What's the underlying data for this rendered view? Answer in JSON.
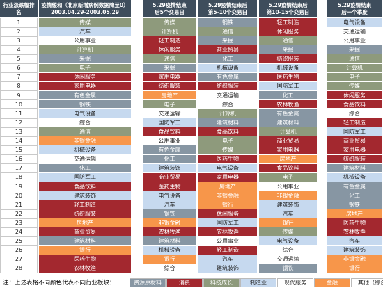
{
  "table": {
    "rank_header": "行业涨跌幅排名",
    "ranks": [
      "1",
      "2",
      "3",
      "4",
      "5",
      "6",
      "7",
      "8",
      "9",
      "10",
      "11",
      "12",
      "13",
      "14",
      "15",
      "16",
      "17",
      "18",
      "19",
      "20",
      "21",
      "22",
      "23",
      "24",
      "25",
      "26",
      "27",
      "28"
    ],
    "columns": [
      {
        "header": [
          "疫情缓和（北京新增病例数据降至0）",
          "2003.04.29-2003.05.29"
        ],
        "cells": [
          "传媒",
          "汽车",
          "公用事业",
          "计算机",
          "采掘",
          "电子",
          "休闲服务",
          "家用电器",
          "有色金属",
          "钢铁",
          "电气设备",
          "综合",
          "通信",
          "非银金融",
          "机械设备",
          "交通运输",
          "化工",
          "国防军工",
          "食品饮料",
          "建筑装饰",
          "轻工制造",
          "纺织服装",
          "房地产",
          "商业贸易",
          "建筑材料",
          "银行",
          "医药生物",
          "农林牧渔"
        ]
      },
      {
        "header": [
          "5.29疫情结束",
          "后5个交易日"
        ],
        "cells": [
          "传媒",
          "计算机",
          "轻工制造",
          "休闲服务",
          "通信",
          "采掘",
          "家用电器",
          "纺织服装",
          "房地产",
          "电子",
          "交通运输",
          "国防军工",
          "食品饮料",
          "公用事业",
          "有色金属",
          "化工",
          "建筑装饰",
          "商业贸易",
          "医药生物",
          "电气设备",
          "汽车",
          "钢铁",
          "非银金融",
          "农林牧渔",
          "建筑材料",
          "机械设备",
          "银行",
          "综合"
        ]
      },
      {
        "header": [
          "5.29疫情结束后",
          "第5-10个交易日"
        ],
        "cells": [
          "钢铁",
          "通信",
          "采掘",
          "商业贸易",
          "化工",
          "机械设备",
          "有色金属",
          "纺织服装",
          "交通运输",
          "综合",
          "计算机",
          "建筑材料",
          "食品饮料",
          "电子",
          "传媒",
          "医药生物",
          "电气设备",
          "家用电器",
          "房地产",
          "非银金融",
          "银行",
          "休闲服务",
          "国防军工",
          "农林牧渔",
          "公用事业",
          "轻工制造",
          "汽车",
          "建筑装饰"
        ]
      },
      {
        "header": [
          "5.29疫情结束后",
          "第10-15个交易日"
        ],
        "cells": [
          "轻工制造",
          "休闲服务",
          "通信",
          "采掘",
          "纺织服装",
          "机械设备",
          "医药生物",
          "国防军工",
          "化工",
          "农林牧渔",
          "有色金属",
          "建筑材料",
          "计算机",
          "商业贸易",
          "家用电器",
          "房地产",
          "食品饮料",
          "电子",
          "公用事业",
          "非银金融",
          "建筑装饰",
          "汽车",
          "银行",
          "传媒",
          "电气设备",
          "综合",
          "交通运输",
          "钢铁"
        ]
      },
      {
        "header": [
          "5.29疫情结束",
          "后一个季度"
        ],
        "cells": [
          "电气设备",
          "交通运输",
          "公用事业",
          "采掘",
          "通信",
          "计算机",
          "电子",
          "传媒",
          "休闲服务",
          "食品饮料",
          "综合",
          "轻工制造",
          "国防军工",
          "商业贸易",
          "家用电器",
          "纺织服装",
          "建筑材料",
          "机械设备",
          "有色金属",
          "化工",
          "钢铁",
          "房地产",
          "医药生物",
          "农林牧渔",
          "汽车",
          "建筑装饰",
          "非银金融",
          "银行"
        ]
      }
    ],
    "note": "注：上述表格不同颜色代表不同行业板块：",
    "legend": [
      {
        "label": "资源原材料",
        "color": "#8796a3",
        "text_color": "#ffffff",
        "members": [
          "采掘",
          "有色金属",
          "钢铁",
          "化工",
          "建筑材料"
        ]
      },
      {
        "label": "消费",
        "color": "#a3282f",
        "text_color": "#ffffff",
        "members": [
          "休闲服务",
          "家用电器",
          "食品饮料",
          "轻工制造",
          "纺织服装",
          "商业贸易",
          "医药生物",
          "农林牧渔"
        ]
      },
      {
        "label": "科技成长",
        "color": "#8e9a7c",
        "text_color": "#ffffff",
        "members": [
          "传媒",
          "计算机",
          "电子",
          "通信"
        ]
      },
      {
        "label": "制造业",
        "color": "#c6d9ef",
        "text_color": "#222222",
        "members": [
          "汽车",
          "电气设备",
          "机械设备",
          "国防军工",
          "建筑装饰"
        ]
      },
      {
        "label": "现代服务",
        "color": "#ffffff",
        "text_color": "#222222",
        "members": [
          "公用事业",
          "交通运输"
        ]
      },
      {
        "label": "金融",
        "color": "#f7964a",
        "text_color": "#ffffff",
        "members": [
          "非银金融",
          "银行",
          "房地产"
        ]
      },
      {
        "label": "其他（综合）",
        "color": "#ffffff",
        "text_color": "#222222",
        "members": [
          "综合"
        ]
      }
    ]
  }
}
